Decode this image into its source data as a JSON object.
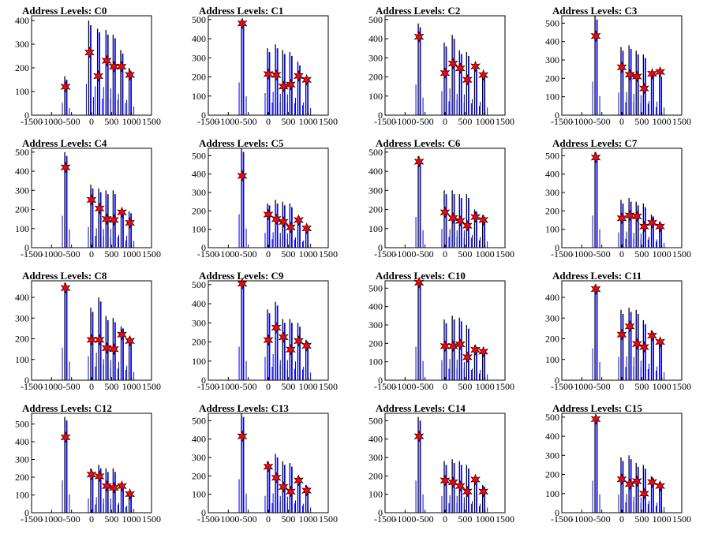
{
  "chart_data": [
    {
      "type": "bar",
      "title": "Address Levels: C0",
      "xlim": [
        -1500,
        1500
      ],
      "ylim": [
        0,
        420
      ],
      "xticks": [
        "-1500",
        "-1000",
        "-500",
        "0",
        "500",
        "1000",
        "1500"
      ],
      "yticks": [
        "0",
        "100",
        "200",
        "300",
        "400"
      ],
      "peaks": [
        {
          "x": -650,
          "black": 165,
          "blue": 150,
          "star": 120
        },
        {
          "x": -50,
          "black": 400,
          "blue": 380,
          "star": 265
        },
        {
          "x": 170,
          "black": 365,
          "blue": 350,
          "star": 165
        },
        {
          "x": 380,
          "black": 360,
          "blue": 340,
          "star": 230
        },
        {
          "x": 560,
          "black": 340,
          "blue": 325,
          "star": 205
        },
        {
          "x": 750,
          "black": 275,
          "blue": 260,
          "star": 205
        },
        {
          "x": 960,
          "black": 200,
          "blue": 185,
          "star": 170
        }
      ]
    },
    {
      "type": "bar",
      "title": "Address Levels: C1",
      "xlim": [
        -1500,
        1500
      ],
      "ylim": [
        0,
        520
      ],
      "xticks": [
        "-1500",
        "-1000",
        "-500",
        "0",
        "500",
        "1000",
        "1500"
      ],
      "yticks": [
        "0",
        "100",
        "200",
        "300",
        "400",
        "500"
      ],
      "peaks": [
        {
          "x": -650,
          "black": 500,
          "blue": 490,
          "star": 480
        },
        {
          "x": 0,
          "black": 350,
          "blue": 330,
          "star": 215
        },
        {
          "x": 200,
          "black": 370,
          "blue": 350,
          "star": 210
        },
        {
          "x": 380,
          "black": 340,
          "blue": 320,
          "star": 150
        },
        {
          "x": 560,
          "black": 330,
          "blue": 310,
          "star": 160
        },
        {
          "x": 760,
          "black": 280,
          "blue": 260,
          "star": 205
        },
        {
          "x": 960,
          "black": 200,
          "blue": 190,
          "star": 185
        }
      ]
    },
    {
      "type": "bar",
      "title": "Address Levels: C2",
      "xlim": [
        -1500,
        1500
      ],
      "ylim": [
        0,
        520
      ],
      "xticks": [
        "-1500",
        "-1000",
        "-500",
        "0",
        "500",
        "1000",
        "1500"
      ],
      "yticks": [
        "0",
        "100",
        "200",
        "300",
        "400",
        "500"
      ],
      "peaks": [
        {
          "x": -650,
          "black": 480,
          "blue": 460,
          "star": 410
        },
        {
          "x": 0,
          "black": 380,
          "blue": 360,
          "star": 220
        },
        {
          "x": 200,
          "black": 420,
          "blue": 400,
          "star": 270
        },
        {
          "x": 380,
          "black": 340,
          "blue": 320,
          "star": 245
        },
        {
          "x": 560,
          "black": 330,
          "blue": 310,
          "star": 185
        },
        {
          "x": 760,
          "black": 250,
          "blue": 240,
          "star": 255
        },
        {
          "x": 960,
          "black": 210,
          "blue": 200,
          "star": 210
        }
      ]
    },
    {
      "type": "bar",
      "title": "Address Levels: C3",
      "xlim": [
        -1500,
        1500
      ],
      "ylim": [
        0,
        540
      ],
      "xticks": [
        "-1500",
        "-1000",
        "-500",
        "0",
        "500",
        "1000",
        "1500"
      ],
      "yticks": [
        "0",
        "100",
        "200",
        "300",
        "400",
        "500"
      ],
      "peaks": [
        {
          "x": -650,
          "black": 540,
          "blue": 520,
          "star": 430
        },
        {
          "x": 0,
          "black": 370,
          "blue": 350,
          "star": 260
        },
        {
          "x": 200,
          "black": 380,
          "blue": 360,
          "star": 220
        },
        {
          "x": 380,
          "black": 350,
          "blue": 330,
          "star": 210
        },
        {
          "x": 560,
          "black": 330,
          "blue": 310,
          "star": 145
        },
        {
          "x": 760,
          "black": 230,
          "blue": 220,
          "star": 225
        },
        {
          "x": 960,
          "black": 220,
          "blue": 210,
          "star": 235
        }
      ]
    },
    {
      "type": "bar",
      "title": "Address Levels: C4",
      "xlim": [
        -1500,
        1500
      ],
      "ylim": [
        0,
        520
      ],
      "xticks": [
        "-1500",
        "-1000",
        "-500",
        "0",
        "500",
        "1000",
        "1500"
      ],
      "yticks": [
        "0",
        "100",
        "200",
        "300",
        "400",
        "500"
      ],
      "peaks": [
        {
          "x": -650,
          "black": 500,
          "blue": 480,
          "star": 420
        },
        {
          "x": 0,
          "black": 330,
          "blue": 310,
          "star": 250
        },
        {
          "x": 200,
          "black": 310,
          "blue": 290,
          "star": 205
        },
        {
          "x": 380,
          "black": 300,
          "blue": 280,
          "star": 150
        },
        {
          "x": 560,
          "black": 300,
          "blue": 280,
          "star": 145
        },
        {
          "x": 760,
          "black": 200,
          "blue": 190,
          "star": 185
        },
        {
          "x": 960,
          "black": 190,
          "blue": 180,
          "star": 130
        }
      ]
    },
    {
      "type": "bar",
      "title": "Address Levels: C5",
      "xlim": [
        -1500,
        1500
      ],
      "ylim": [
        0,
        540
      ],
      "xticks": [
        "-1500",
        "-1000",
        "-500",
        "0",
        "500",
        "1000",
        "1500"
      ],
      "yticks": [
        "0",
        "100",
        "200",
        "300",
        "400",
        "500"
      ],
      "peaks": [
        {
          "x": -650,
          "black": 540,
          "blue": 520,
          "star": 390
        },
        {
          "x": 0,
          "black": 240,
          "blue": 230,
          "star": 180
        },
        {
          "x": 200,
          "black": 260,
          "blue": 240,
          "star": 155
        },
        {
          "x": 380,
          "black": 250,
          "blue": 230,
          "star": 140
        },
        {
          "x": 560,
          "black": 240,
          "blue": 220,
          "star": 110
        },
        {
          "x": 760,
          "black": 170,
          "blue": 160,
          "star": 150
        },
        {
          "x": 960,
          "black": 120,
          "blue": 110,
          "star": 105
        }
      ]
    },
    {
      "type": "bar",
      "title": "Address Levels: C6",
      "xlim": [
        -1500,
        1500
      ],
      "ylim": [
        0,
        520
      ],
      "xticks": [
        "-1500",
        "-1000",
        "-500",
        "0",
        "500",
        "1000",
        "1500"
      ],
      "yticks": [
        "0",
        "100",
        "200",
        "300",
        "400",
        "500"
      ],
      "peaks": [
        {
          "x": -650,
          "black": 480,
          "blue": 460,
          "star": 450
        },
        {
          "x": 0,
          "black": 300,
          "blue": 280,
          "star": 185
        },
        {
          "x": 200,
          "black": 300,
          "blue": 280,
          "star": 155
        },
        {
          "x": 380,
          "black": 280,
          "blue": 260,
          "star": 140
        },
        {
          "x": 560,
          "black": 280,
          "blue": 260,
          "star": 115
        },
        {
          "x": 760,
          "black": 200,
          "blue": 190,
          "star": 160
        },
        {
          "x": 960,
          "black": 170,
          "blue": 160,
          "star": 145
        }
      ]
    },
    {
      "type": "bar",
      "title": "Address Levels: C7",
      "xlim": [
        -1500,
        1500
      ],
      "ylim": [
        0,
        540
      ],
      "xticks": [
        "-1500",
        "-1000",
        "-500",
        "0",
        "500",
        "1000",
        "1500"
      ],
      "yticks": [
        "0",
        "100",
        "200",
        "300",
        "400",
        "500"
      ],
      "peaks": [
        {
          "x": -650,
          "black": 520,
          "blue": 500,
          "star": 490
        },
        {
          "x": 0,
          "black": 260,
          "blue": 240,
          "star": 160
        },
        {
          "x": 200,
          "black": 270,
          "blue": 250,
          "star": 175
        },
        {
          "x": 380,
          "black": 250,
          "blue": 230,
          "star": 170
        },
        {
          "x": 560,
          "black": 240,
          "blue": 220,
          "star": 115
        },
        {
          "x": 760,
          "black": 180,
          "blue": 170,
          "star": 135
        },
        {
          "x": 960,
          "black": 140,
          "blue": 130,
          "star": 115
        }
      ]
    },
    {
      "type": "bar",
      "title": "Address Levels: C8",
      "xlim": [
        -1500,
        1500
      ],
      "ylim": [
        0,
        480
      ],
      "xticks": [
        "-1500",
        "-1000",
        "-500",
        "0",
        "500",
        "1000",
        "1500"
      ],
      "yticks": [
        "0",
        "100",
        "200",
        "300",
        "400"
      ],
      "peaks": [
        {
          "x": -650,
          "black": 470,
          "blue": 450,
          "star": 445
        },
        {
          "x": 0,
          "black": 350,
          "blue": 330,
          "star": 195
        },
        {
          "x": 200,
          "black": 400,
          "blue": 380,
          "star": 195
        },
        {
          "x": 380,
          "black": 310,
          "blue": 290,
          "star": 155
        },
        {
          "x": 560,
          "black": 300,
          "blue": 280,
          "star": 150
        },
        {
          "x": 760,
          "black": 260,
          "blue": 250,
          "star": 220
        },
        {
          "x": 960,
          "black": 210,
          "blue": 200,
          "star": 190
        }
      ]
    },
    {
      "type": "bar",
      "title": "Address Levels: C9",
      "xlim": [
        -1500,
        1500
      ],
      "ylim": [
        0,
        520
      ],
      "xticks": [
        "-1500",
        "-1000",
        "-500",
        "0",
        "500",
        "1000",
        "1500"
      ],
      "yticks": [
        "0",
        "100",
        "200",
        "300",
        "400",
        "500"
      ],
      "peaks": [
        {
          "x": -650,
          "black": 510,
          "blue": 500,
          "star": 505
        },
        {
          "x": 0,
          "black": 370,
          "blue": 350,
          "star": 210
        },
        {
          "x": 200,
          "black": 410,
          "blue": 390,
          "star": 275
        },
        {
          "x": 380,
          "black": 320,
          "blue": 300,
          "star": 225
        },
        {
          "x": 560,
          "black": 320,
          "blue": 300,
          "star": 160
        },
        {
          "x": 760,
          "black": 300,
          "blue": 280,
          "star": 205
        },
        {
          "x": 960,
          "black": 210,
          "blue": 200,
          "star": 180
        }
      ]
    },
    {
      "type": "bar",
      "title": "Address Levels: C10",
      "xlim": [
        -1500,
        1500
      ],
      "ylim": [
        0,
        540
      ],
      "xticks": [
        "-1500",
        "-1000",
        "-500",
        "0",
        "500",
        "1000",
        "1500"
      ],
      "yticks": [
        "0",
        "100",
        "200",
        "300",
        "400",
        "500"
      ],
      "peaks": [
        {
          "x": -650,
          "black": 540,
          "blue": 520,
          "star": 530
        },
        {
          "x": 0,
          "black": 330,
          "blue": 310,
          "star": 185
        },
        {
          "x": 200,
          "black": 350,
          "blue": 330,
          "star": 185
        },
        {
          "x": 380,
          "black": 340,
          "blue": 320,
          "star": 195
        },
        {
          "x": 560,
          "black": 300,
          "blue": 280,
          "star": 125
        },
        {
          "x": 760,
          "black": 190,
          "blue": 180,
          "star": 165
        },
        {
          "x": 960,
          "black": 170,
          "blue": 160,
          "star": 155
        }
      ]
    },
    {
      "type": "bar",
      "title": "Address Levels: C11",
      "xlim": [
        -1500,
        1500
      ],
      "ylim": [
        0,
        480
      ],
      "xticks": [
        "-1500",
        "-1000",
        "-500",
        "0",
        "500",
        "1000",
        "1500"
      ],
      "yticks": [
        "0",
        "100",
        "200",
        "300",
        "400"
      ],
      "peaks": [
        {
          "x": -650,
          "black": 460,
          "blue": 440,
          "star": 440
        },
        {
          "x": 0,
          "black": 340,
          "blue": 320,
          "star": 220
        },
        {
          "x": 200,
          "black": 350,
          "blue": 330,
          "star": 260
        },
        {
          "x": 380,
          "black": 340,
          "blue": 320,
          "star": 175
        },
        {
          "x": 560,
          "black": 290,
          "blue": 270,
          "star": 160
        },
        {
          "x": 760,
          "black": 240,
          "blue": 230,
          "star": 215
        },
        {
          "x": 960,
          "black": 200,
          "blue": 190,
          "star": 185
        }
      ]
    },
    {
      "type": "bar",
      "title": "Address Levels: C12",
      "xlim": [
        -1500,
        1500
      ],
      "ylim": [
        0,
        560
      ],
      "xticks": [
        "-1500",
        "-1000",
        "-500",
        "0",
        "500",
        "1000",
        "1500"
      ],
      "yticks": [
        "0",
        "100",
        "200",
        "300",
        "400",
        "500"
      ],
      "peaks": [
        {
          "x": -650,
          "black": 540,
          "blue": 520,
          "star": 425
        },
        {
          "x": 0,
          "black": 250,
          "blue": 230,
          "star": 215
        },
        {
          "x": 200,
          "black": 270,
          "blue": 250,
          "star": 205
        },
        {
          "x": 380,
          "black": 250,
          "blue": 230,
          "star": 150
        },
        {
          "x": 560,
          "black": 250,
          "blue": 230,
          "star": 140
        },
        {
          "x": 760,
          "black": 170,
          "blue": 160,
          "star": 150
        },
        {
          "x": 960,
          "black": 120,
          "blue": 110,
          "star": 105
        }
      ]
    },
    {
      "type": "bar",
      "title": "Address Levels: C13",
      "xlim": [
        -1500,
        1500
      ],
      "ylim": [
        0,
        540
      ],
      "xticks": [
        "-1500",
        "-1000",
        "-500",
        "0",
        "500",
        "1000",
        "1500"
      ],
      "yticks": [
        "0",
        "100",
        "200",
        "300",
        "400",
        "500"
      ],
      "peaks": [
        {
          "x": -650,
          "black": 540,
          "blue": 520,
          "star": 415
        },
        {
          "x": 0,
          "black": 280,
          "blue": 260,
          "star": 250
        },
        {
          "x": 200,
          "black": 320,
          "blue": 300,
          "star": 190
        },
        {
          "x": 380,
          "black": 280,
          "blue": 260,
          "star": 140
        },
        {
          "x": 560,
          "black": 270,
          "blue": 250,
          "star": 115
        },
        {
          "x": 760,
          "black": 200,
          "blue": 190,
          "star": 175
        },
        {
          "x": 960,
          "black": 150,
          "blue": 140,
          "star": 120
        }
      ]
    },
    {
      "type": "bar",
      "title": "Address Levels: C14",
      "xlim": [
        -1500,
        1500
      ],
      "ylim": [
        0,
        540
      ],
      "xticks": [
        "-1500",
        "-1000",
        "-500",
        "0",
        "500",
        "1000",
        "1500"
      ],
      "yticks": [
        "0",
        "100",
        "200",
        "300",
        "400",
        "500"
      ],
      "peaks": [
        {
          "x": -650,
          "black": 520,
          "blue": 500,
          "star": 415
        },
        {
          "x": 0,
          "black": 280,
          "blue": 260,
          "star": 175
        },
        {
          "x": 200,
          "black": 290,
          "blue": 270,
          "star": 165
        },
        {
          "x": 380,
          "black": 280,
          "blue": 260,
          "star": 145
        },
        {
          "x": 560,
          "black": 260,
          "blue": 240,
          "star": 115
        },
        {
          "x": 760,
          "black": 190,
          "blue": 180,
          "star": 180
        },
        {
          "x": 960,
          "black": 150,
          "blue": 140,
          "star": 115
        }
      ]
    },
    {
      "type": "bar",
      "title": "Address Levels: C15",
      "xlim": [
        -1500,
        1500
      ],
      "ylim": [
        0,
        520
      ],
      "xticks": [
        "-1500",
        "-1000",
        "-500",
        "0",
        "500",
        "1000",
        "1500"
      ],
      "yticks": [
        "0",
        "100",
        "200",
        "300",
        "400",
        "500"
      ],
      "peaks": [
        {
          "x": -650,
          "black": 500,
          "blue": 480,
          "star": 490
        },
        {
          "x": 0,
          "black": 290,
          "blue": 270,
          "star": 175
        },
        {
          "x": 200,
          "black": 300,
          "blue": 280,
          "star": 150
        },
        {
          "x": 380,
          "black": 260,
          "blue": 240,
          "star": 165
        },
        {
          "x": 560,
          "black": 250,
          "blue": 230,
          "star": 100
        },
        {
          "x": 760,
          "black": 190,
          "blue": 180,
          "star": 160
        },
        {
          "x": 960,
          "black": 160,
          "blue": 150,
          "star": 140
        }
      ]
    }
  ],
  "colors": {
    "black_hist": "#000000",
    "blue_hist": "#0000ff",
    "star": "#ff0000",
    "star_edge": "#000000"
  }
}
